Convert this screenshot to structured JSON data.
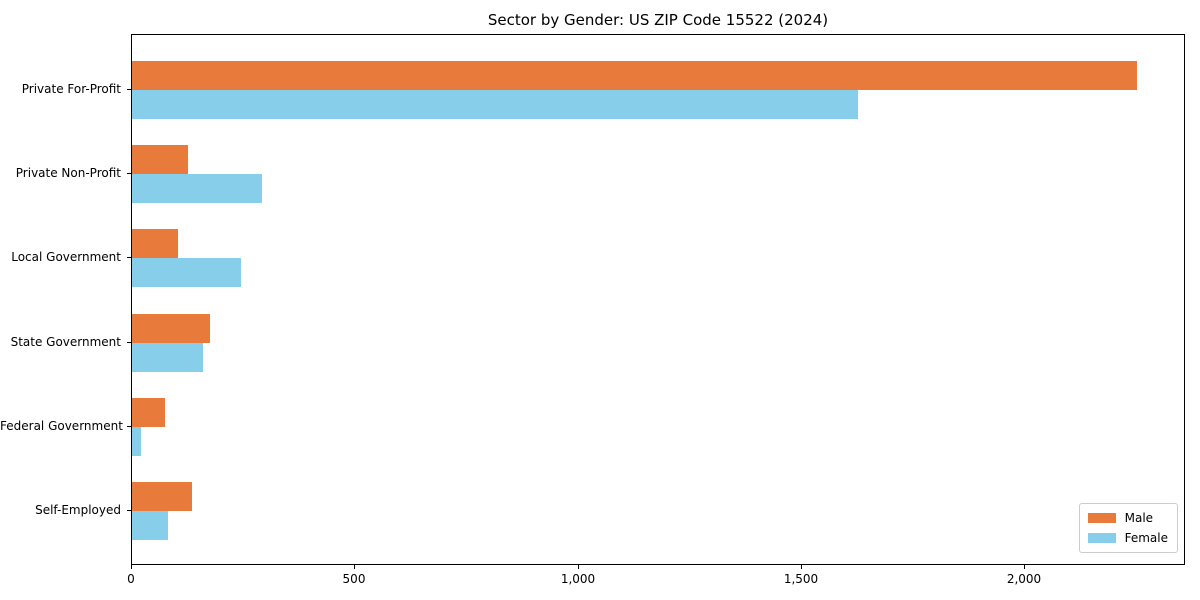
{
  "chart_data": {
    "type": "bar",
    "orientation": "horizontal",
    "title": "Sector by Gender: US ZIP Code 15522 (2024)",
    "categories": [
      "Private For-Profit",
      "Private Non-Profit",
      "Local Government",
      "State Government",
      "Federal Government",
      "Self-Employed"
    ],
    "series": [
      {
        "name": "Male",
        "color": "#E87A3C",
        "values": [
          2250,
          125,
          103,
          175,
          75,
          135
        ]
      },
      {
        "name": "Female",
        "color": "#87CEEB",
        "values": [
          1625,
          290,
          245,
          160,
          20,
          80
        ]
      }
    ],
    "xlabel": "",
    "ylabel": "",
    "xlim": [
      0,
      2360
    ],
    "xticks": [
      0,
      500,
      1000,
      1500,
      2000
    ],
    "xtick_labels": [
      "0",
      "500",
      "1,000",
      "1,500",
      "2,000"
    ],
    "grid": false,
    "legend_position": "lower right"
  }
}
